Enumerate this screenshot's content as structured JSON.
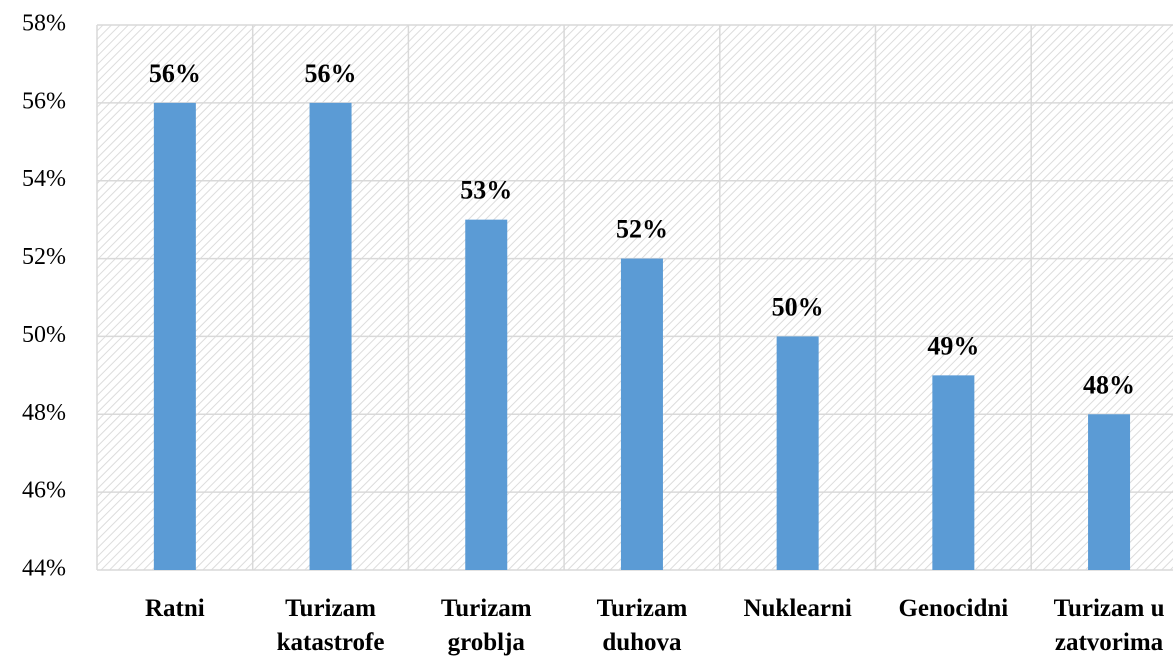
{
  "chart_data": {
    "type": "bar",
    "categories": [
      "Ratni",
      "Turizam katastrofe",
      "Turizam groblja",
      "Turizam duhova",
      "Nuklearni",
      "Genocidni",
      "Turizam u zatvorima"
    ],
    "values": [
      56,
      56,
      53,
      52,
      50,
      49,
      48
    ],
    "value_labels": [
      "56%",
      "56%",
      "53%",
      "52%",
      "50%",
      "49%",
      "48%"
    ],
    "color": "#5b9bd5",
    "ylim": [
      44,
      58
    ],
    "yticks": [
      {
        "value": 44,
        "label": "44%"
      },
      {
        "value": 46,
        "label": "46%"
      },
      {
        "value": 48,
        "label": "48%"
      },
      {
        "value": 50,
        "label": "50%"
      },
      {
        "value": 52,
        "label": "52%"
      },
      {
        "value": 54,
        "label": "54%"
      },
      {
        "value": 56,
        "label": "56%"
      },
      {
        "value": 58,
        "label": "58%"
      }
    ],
    "grid": true
  }
}
